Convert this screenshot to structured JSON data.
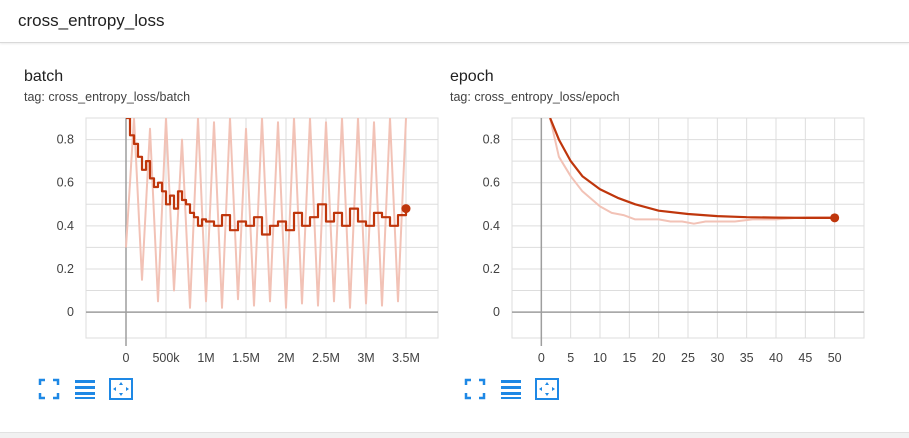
{
  "header": {
    "title": "cross_entropy_loss"
  },
  "colors": {
    "accent": "#1e88e5",
    "smoothed": "#bf360c",
    "raw": "#f2c2b6",
    "grid": "#dddddd",
    "axis": "#9e9e9e"
  },
  "icons": {
    "fit": "fullscreen-icon",
    "log": "log-scale-lines-icon",
    "fitdomain": "fit-domain-icon"
  },
  "cards": [
    {
      "title": "batch",
      "tag": "tag: cross_entropy_loss/batch"
    },
    {
      "title": "epoch",
      "tag": "tag: cross_entropy_loss/epoch"
    }
  ],
  "chart_data": [
    {
      "type": "line",
      "title": "batch",
      "xlim": [
        -500000,
        3900000
      ],
      "ylim": [
        -0.12,
        0.9
      ],
      "x_ticks": [
        0,
        500000,
        1000000,
        1500000,
        2000000,
        2500000,
        3000000,
        3500000
      ],
      "x_tick_labels": [
        "0",
        "500k",
        "1M",
        "1.5M",
        "2M",
        "2.5M",
        "3M",
        "3.5M"
      ],
      "y_ticks": [
        0,
        0.2,
        0.4,
        0.6,
        0.8
      ],
      "y_tick_labels": [
        "0",
        "0.2",
        "0.4",
        "0.6",
        "0.8"
      ],
      "series": [
        {
          "role": "smoothed",
          "x": [
            0,
            50000,
            100000,
            150000,
            200000,
            250000,
            300000,
            350000,
            400000,
            450000,
            500000,
            550000,
            600000,
            650000,
            700000,
            750000,
            800000,
            850000,
            900000,
            950000,
            1000000,
            1100000,
            1200000,
            1300000,
            1400000,
            1500000,
            1600000,
            1700000,
            1800000,
            1900000,
            2000000,
            2100000,
            2200000,
            2300000,
            2400000,
            2500000,
            2600000,
            2700000,
            2800000,
            2900000,
            3000000,
            3100000,
            3200000,
            3300000,
            3400000,
            3500000
          ],
          "y": [
            0.9,
            0.82,
            0.78,
            0.72,
            0.66,
            0.7,
            0.62,
            0.58,
            0.6,
            0.56,
            0.5,
            0.54,
            0.48,
            0.56,
            0.52,
            0.5,
            0.46,
            0.44,
            0.4,
            0.43,
            0.42,
            0.4,
            0.45,
            0.38,
            0.42,
            0.4,
            0.44,
            0.36,
            0.4,
            0.42,
            0.38,
            0.46,
            0.4,
            0.44,
            0.5,
            0.42,
            0.46,
            0.4,
            0.48,
            0.42,
            0.4,
            0.46,
            0.44,
            0.4,
            0.45,
            0.48
          ]
        },
        {
          "role": "raw",
          "x": [
            0,
            100000,
            200000,
            300000,
            400000,
            500000,
            600000,
            700000,
            800000,
            900000,
            1000000,
            1100000,
            1200000,
            1300000,
            1400000,
            1500000,
            1600000,
            1700000,
            1800000,
            1900000,
            2000000,
            2100000,
            2200000,
            2300000,
            2400000,
            2500000,
            2600000,
            2700000,
            2800000,
            2900000,
            3000000,
            3100000,
            3200000,
            3300000,
            3400000,
            3500000
          ],
          "y": [
            0.3,
            0.9,
            0.15,
            0.85,
            0.05,
            0.9,
            0.1,
            0.8,
            0.02,
            0.9,
            0.05,
            0.88,
            0.02,
            0.9,
            0.06,
            0.85,
            0.03,
            0.9,
            0.05,
            0.88,
            0.02,
            0.9,
            0.04,
            0.9,
            0.03,
            0.88,
            0.05,
            0.9,
            0.02,
            0.9,
            0.04,
            0.88,
            0.03,
            0.9,
            0.05,
            0.9
          ]
        }
      ]
    },
    {
      "type": "line",
      "title": "epoch",
      "xlim": [
        -5,
        55
      ],
      "ylim": [
        -0.12,
        0.9
      ],
      "x_ticks": [
        0,
        5,
        10,
        15,
        20,
        25,
        30,
        35,
        40,
        45,
        50
      ],
      "x_tick_labels": [
        "0",
        "5",
        "10",
        "15",
        "20",
        "25",
        "30",
        "35",
        "40",
        "45",
        "50"
      ],
      "y_ticks": [
        0,
        0.2,
        0.4,
        0.6,
        0.8
      ],
      "y_tick_labels": [
        "0",
        "0.2",
        "0.4",
        "0.6",
        "0.8"
      ],
      "series": [
        {
          "role": "smoothed",
          "x": [
            1.5,
            3,
            5,
            7,
            10,
            13,
            16,
            20,
            25,
            30,
            35,
            40,
            45,
            50
          ],
          "y": [
            0.9,
            0.8,
            0.7,
            0.63,
            0.57,
            0.53,
            0.5,
            0.47,
            0.455,
            0.445,
            0.44,
            0.438,
            0.437,
            0.437
          ]
        },
        {
          "role": "raw",
          "x": [
            1.5,
            3,
            5,
            7,
            10,
            12,
            14,
            16,
            18,
            20,
            22,
            24,
            26,
            28,
            30,
            33,
            36,
            40,
            45,
            50
          ],
          "y": [
            0.9,
            0.72,
            0.63,
            0.56,
            0.49,
            0.46,
            0.45,
            0.43,
            0.43,
            0.43,
            0.42,
            0.42,
            0.41,
            0.42,
            0.42,
            0.42,
            0.43,
            0.43,
            0.44,
            0.44
          ]
        }
      ]
    }
  ]
}
